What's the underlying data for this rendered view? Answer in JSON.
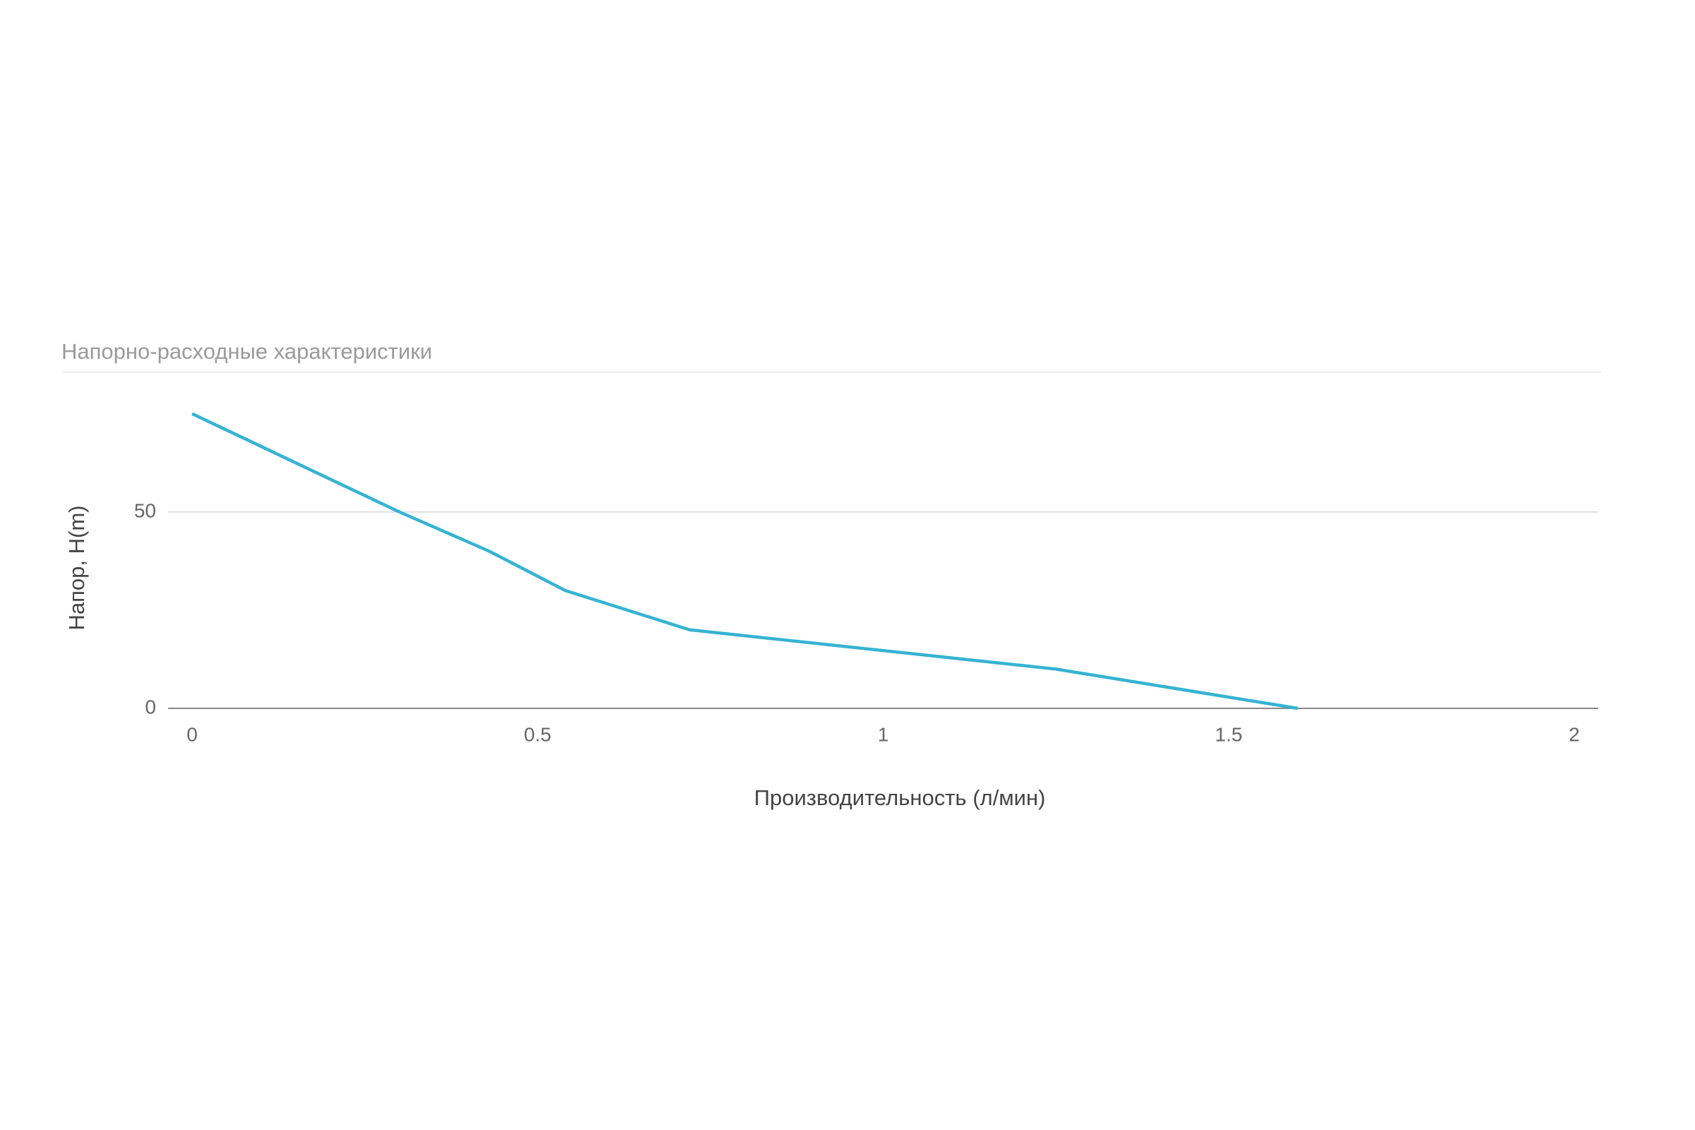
{
  "chart_data": {
    "type": "line",
    "title": "Напорно-расходные характеристики",
    "x_label": "Производительность (л/мин)",
    "y_label": "Напор, H(m)",
    "x": [
      0,
      0.3,
      0.43,
      0.54,
      0.72,
      1.25,
      1.6
    ],
    "values": [
      75,
      50,
      40,
      30,
      20,
      10,
      0
    ],
    "color": "#35b3d3",
    "xlim": [
      0,
      2
    ],
    "xticks": [
      0,
      0.5,
      1,
      1.5,
      2
    ],
    "ylim": [
      0,
      80
    ],
    "yticks": [
      0,
      50
    ],
    "grid": true
  }
}
